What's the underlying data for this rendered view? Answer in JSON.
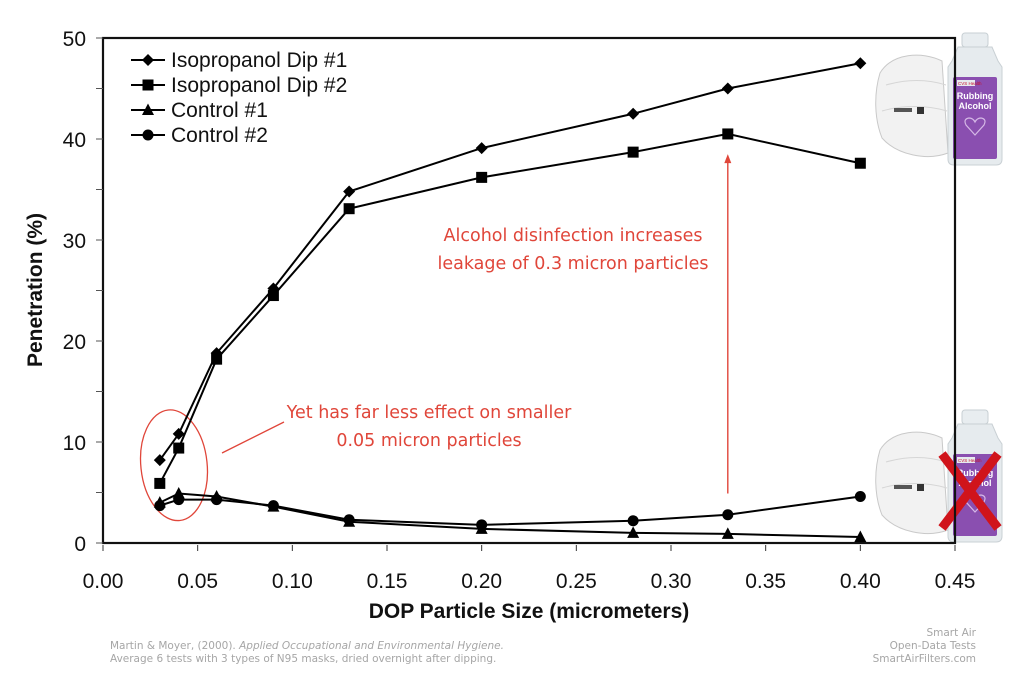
{
  "chart_data": {
    "type": "line",
    "title": "",
    "xlabel": "DOP Particle Size (micrometers)",
    "ylabel": "Penetration (%)",
    "xlim": [
      0.0,
      0.45
    ],
    "ylim": [
      0,
      50
    ],
    "xticks": [
      "0.00",
      "0.05",
      "0.10",
      "0.15",
      "0.20",
      "0.25",
      "0.30",
      "0.35",
      "0.40",
      "0.45"
    ],
    "yticks": [
      "0",
      "10",
      "20",
      "30",
      "40",
      "50"
    ],
    "y_minor_step": 5,
    "grid": false,
    "legend_position": "top-left",
    "x": [
      0.03,
      0.04,
      0.06,
      0.09,
      0.13,
      0.2,
      0.28,
      0.33,
      0.4
    ],
    "series": [
      {
        "name": "Isopropanol Dip #1",
        "marker": "diamond",
        "values": [
          8.2,
          10.8,
          18.8,
          25.2,
          34.8,
          39.1,
          42.5,
          45.0,
          47.5
        ]
      },
      {
        "name": "Isopropanol Dip #2",
        "marker": "square",
        "values": [
          5.9,
          9.4,
          18.2,
          24.5,
          33.1,
          36.2,
          38.7,
          40.5,
          37.6
        ]
      },
      {
        "name": "Control #1",
        "marker": "triangle",
        "values": [
          4.0,
          4.9,
          4.6,
          3.6,
          2.1,
          1.4,
          1.0,
          0.9,
          0.6
        ]
      },
      {
        "name": "Control #2",
        "marker": "circle",
        "values": [
          3.7,
          4.3,
          4.3,
          3.7,
          2.3,
          1.8,
          2.2,
          2.8,
          4.6
        ]
      }
    ],
    "annotations": [
      {
        "id": "increase",
        "lines": [
          "Alcohol disinfection increases",
          "leakage of 0.3 micron particles"
        ],
        "arrow_x": 0.33,
        "arrow_from_y": 4.9,
        "arrow_to_y": 38.5
      },
      {
        "id": "small",
        "lines": [
          "Yet has far less effect on smaller",
          "0.05 micron particles"
        ],
        "highlight_x_range": [
          0.02,
          0.055
        ],
        "highlight_y_range": [
          2.2,
          13.2
        ]
      }
    ],
    "images": [
      {
        "name": "n95-mask-with-rubbing-alcohol",
        "label_brand": "CVS Health",
        "label_line1": "Rubbing",
        "label_line2": "Alcohol",
        "crossed_out": false
      },
      {
        "name": "n95-mask-with-rubbing-alcohol-crossed",
        "label_brand": "CVS Health",
        "label_line1": "Rubbing",
        "label_line2": "Alcohol",
        "crossed_out": true
      }
    ]
  },
  "colors": {
    "annotation": "#e0463a",
    "cross": "#d0141b",
    "bottle_label": "#8a4fb0",
    "axis": "#111111"
  },
  "footer": {
    "citation_prefix": "Martin & Moyer, (2000). ",
    "citation_journal": "Applied Occupational and Environmental Hygiene.",
    "citation_line2": "Average 6 tests with 3 types of N95 masks, dried overnight after dipping.",
    "brand_line1": "Smart Air",
    "brand_line2": "Open-Data Tests",
    "brand_line3": "SmartAirFilters.com"
  }
}
